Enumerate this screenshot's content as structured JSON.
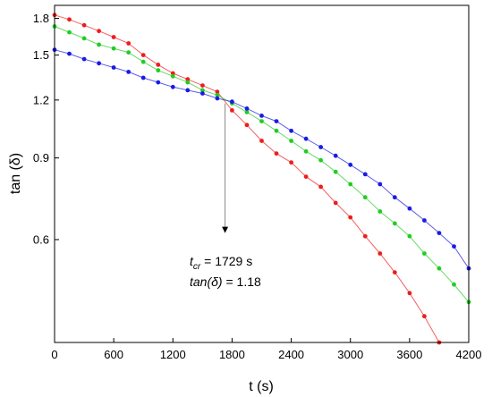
{
  "chart_data": {
    "type": "scatter",
    "xlabel": "t (s)",
    "ylabel": "tan (δ)",
    "xlim": [
      0,
      4200
    ],
    "ylim": [
      0.36,
      1.92
    ],
    "x_ticks": [
      0,
      600,
      1200,
      1800,
      2400,
      3000,
      3600,
      4200
    ],
    "y_ticks": [
      0.6,
      0.9,
      1.2,
      1.5,
      1.8
    ],
    "grid": false,
    "legend": "none",
    "series": [
      {
        "color": "#ee1c1c",
        "x": [
          0,
          150,
          300,
          450,
          600,
          750,
          900,
          1050,
          1200,
          1350,
          1500,
          1650,
          1800,
          1950,
          2100,
          2250,
          2400,
          2550,
          2700,
          2850,
          3000,
          3150,
          3300,
          3450,
          3600,
          3750,
          3900
        ],
        "y": [
          1.83,
          1.79,
          1.74,
          1.69,
          1.64,
          1.59,
          1.5,
          1.43,
          1.37,
          1.33,
          1.29,
          1.25,
          1.14,
          1.06,
          0.98,
          0.92,
          0.88,
          0.82,
          0.78,
          0.72,
          0.67,
          0.61,
          0.56,
          0.51,
          0.46,
          0.41,
          0.36
        ]
      },
      {
        "color": "#22cc22",
        "x": [
          0,
          150,
          300,
          450,
          600,
          750,
          900,
          1050,
          1200,
          1350,
          1500,
          1650,
          1800,
          1950,
          2100,
          2250,
          2400,
          2550,
          2700,
          2850,
          3000,
          3150,
          3300,
          3450,
          3600,
          3750,
          3900,
          4050,
          4200
        ],
        "y": [
          1.73,
          1.68,
          1.63,
          1.58,
          1.55,
          1.52,
          1.45,
          1.39,
          1.35,
          1.31,
          1.26,
          1.23,
          1.18,
          1.13,
          1.08,
          1.03,
          0.98,
          0.93,
          0.89,
          0.84,
          0.79,
          0.74,
          0.69,
          0.65,
          0.61,
          0.56,
          0.52,
          0.48,
          0.44
        ]
      },
      {
        "color": "#1a1ae6",
        "x": [
          0,
          150,
          300,
          450,
          600,
          750,
          900,
          1050,
          1200,
          1350,
          1500,
          1650,
          1800,
          1950,
          2100,
          2250,
          2400,
          2550,
          2700,
          2850,
          3000,
          3150,
          3300,
          3450,
          3600,
          3750,
          3900,
          4050,
          4200
        ],
        "y": [
          1.54,
          1.51,
          1.47,
          1.44,
          1.41,
          1.38,
          1.34,
          1.31,
          1.28,
          1.26,
          1.24,
          1.21,
          1.19,
          1.15,
          1.11,
          1.08,
          1.03,
          0.99,
          0.95,
          0.91,
          0.87,
          0.83,
          0.79,
          0.74,
          0.7,
          0.66,
          0.62,
          0.58,
          0.52
        ]
      }
    ],
    "annotations": [
      {
        "type": "arrow",
        "x": 1729,
        "y_from": 1.18,
        "y_to": 0.62,
        "color": "#888888"
      }
    ],
    "annotation_text": {
      "tcr_main": "t",
      "tcr_sub": "cr",
      "tcr_value": " = 1729 s",
      "tan_label": "tan(δ)",
      "tan_value": " = 1.18"
    }
  }
}
